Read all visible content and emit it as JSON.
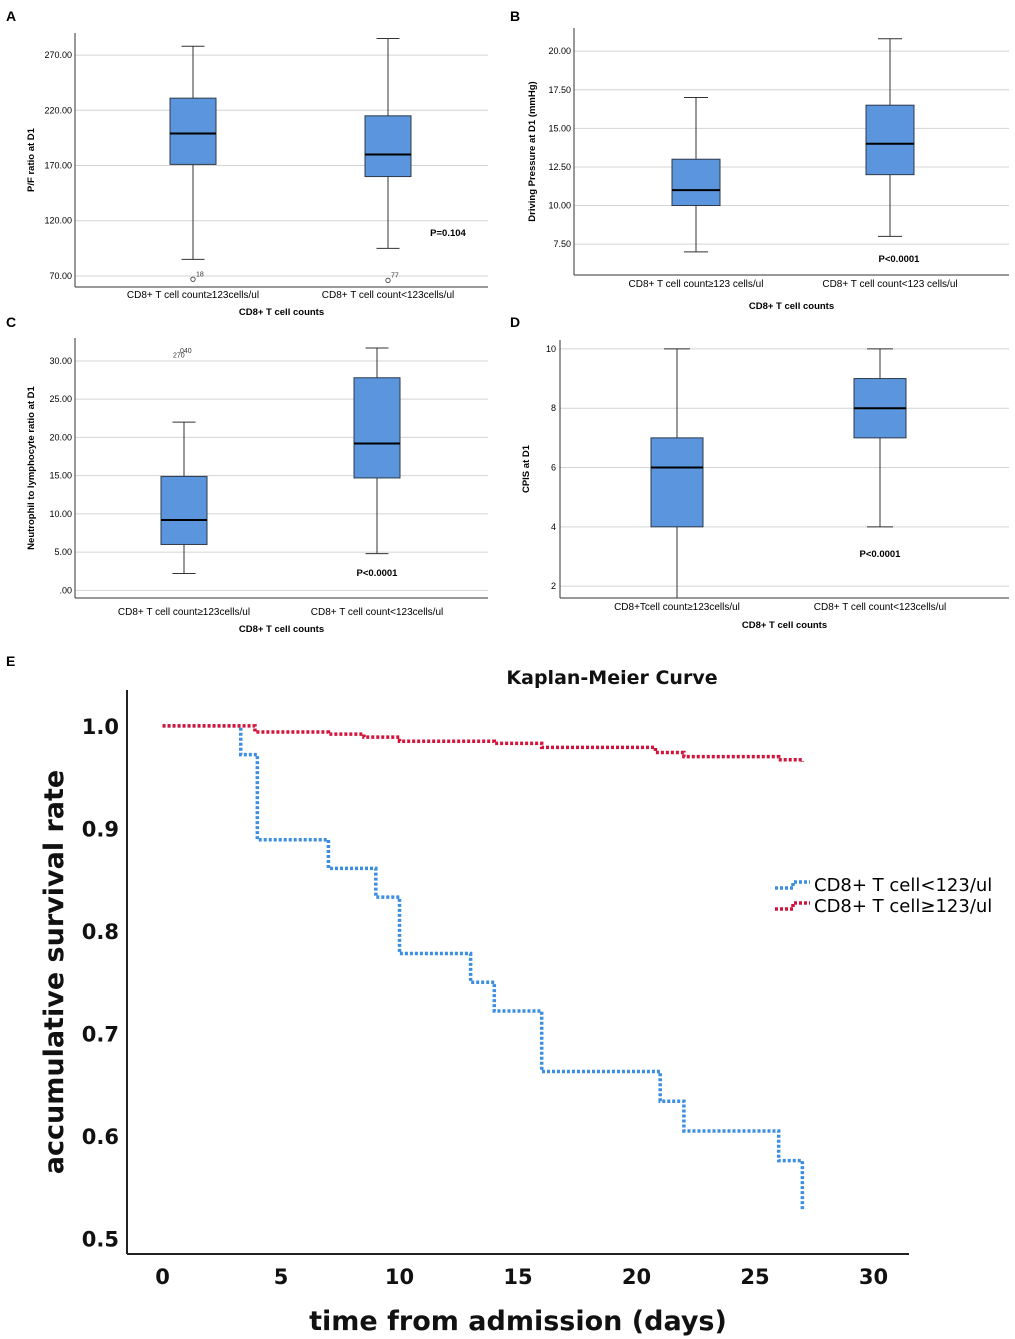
{
  "panel_labels": [
    "A",
    "B",
    "C",
    "D",
    "E"
  ],
  "chart_data": [
    {
      "panel": "A",
      "type": "box",
      "title": "",
      "xlabel": "CD8+ T cell counts",
      "ylabel": "P/F ratio at D1",
      "ylim": [
        60,
        290
      ],
      "yticks": [
        70,
        120,
        170,
        220,
        270
      ],
      "ytick_labels": [
        "70.00",
        "120.00",
        "170.00",
        "220.00",
        "270.00"
      ],
      "categories": [
        "CD8+ T cell count≥123cells/ul",
        "CD8+ T cell count<123cells/ul"
      ],
      "boxes": [
        {
          "whisker_low": 85,
          "q1": 171,
          "median": 199,
          "q3": 231,
          "whisker_high": 278,
          "outliers": [
            {
              "value": 67,
              "label": "18"
            }
          ]
        },
        {
          "whisker_low": 95,
          "q1": 160,
          "median": 180,
          "q3": 215,
          "whisker_high": 285,
          "outliers": [
            {
              "value": 66,
              "label": "77"
            }
          ]
        }
      ],
      "annotation": "P=0.104"
    },
    {
      "panel": "B",
      "type": "box",
      "title": "",
      "xlabel": "CD8+ T cell counts",
      "ylabel": "Driving Pressure at D1 (mmHg)",
      "ylim": [
        5.5,
        21.5
      ],
      "yticks": [
        7.5,
        10,
        12.5,
        15,
        17.5,
        20
      ],
      "ytick_labels": [
        "7.50",
        "10.00",
        "12.50",
        "15.00",
        "17.50",
        "20.00"
      ],
      "categories": [
        "CD8+ T cell count≥123 cells/ul",
        "CD8+ T cell count<123 cells/ul"
      ],
      "boxes": [
        {
          "whisker_low": 7,
          "q1": 10,
          "median": 11,
          "q3": 13,
          "whisker_high": 17,
          "outliers": []
        },
        {
          "whisker_low": 8,
          "q1": 12,
          "median": 14,
          "q3": 16.5,
          "whisker_high": 20.8,
          "outliers": []
        }
      ],
      "annotation": "P<0.0001"
    },
    {
      "panel": "C",
      "type": "box",
      "title": "",
      "xlabel": "CD8+ T cell counts",
      "ylabel": "Neutrophil to lymphocyte ratio at D1",
      "ylim": [
        -1,
        33
      ],
      "yticks": [
        0,
        5,
        10,
        15,
        20,
        25,
        30
      ],
      "ytick_labels": [
        ".00",
        "5.00",
        "10.00",
        "15.00",
        "20.00",
        "25.00",
        "30.00"
      ],
      "categories": [
        "CD8+ T cell count≥123cells/ul",
        "CD8+ T cell count<123cells/ul"
      ],
      "boxes": [
        {
          "whisker_low": 2.2,
          "q1": 6,
          "median": 9.2,
          "q3": 14.9,
          "whisker_high": 22,
          "outliers": [
            {
              "value": 31,
              "label": "270"
            },
            {
              "value": 31.3,
              "label": "040"
            }
          ]
        },
        {
          "whisker_low": 4.8,
          "q1": 14.7,
          "median": 19.2,
          "q3": 27.8,
          "whisker_high": 31.7,
          "outliers": []
        }
      ],
      "annotation": "P<0.0001"
    },
    {
      "panel": "D",
      "type": "box",
      "title": "",
      "xlabel": "CD8+ T cell counts",
      "ylabel": "CPIS at D1",
      "ylim": [
        1.6,
        10.3
      ],
      "yticks": [
        2,
        4,
        6,
        8,
        10
      ],
      "ytick_labels": [
        "2",
        "4",
        "6",
        "8",
        "10"
      ],
      "categories": [
        "CD8+Tcell count≥123cells/ul",
        "CD8+ T cell count<123cells/ul"
      ],
      "boxes": [
        {
          "whisker_low": 1.6,
          "q1": 4,
          "median": 6,
          "q3": 7,
          "whisker_high": 10,
          "outliers": []
        },
        {
          "whisker_low": 4,
          "q1": 7,
          "median": 8,
          "q3": 9,
          "whisker_high": 10,
          "outliers": []
        }
      ],
      "annotation": "P<0.0001"
    },
    {
      "panel": "E",
      "type": "line",
      "title": "Kaplan-Meier Curve",
      "xlabel": "time from admission (days)",
      "ylabel": "accumulative survival rate",
      "xlim": [
        -1.5,
        31.5
      ],
      "ylim": [
        0.485,
        1.035
      ],
      "xticks": [
        0,
        5,
        10,
        15,
        20,
        25,
        30
      ],
      "xtick_labels": [
        "0",
        "5",
        "10",
        "15",
        "20",
        "25",
        "30"
      ],
      "yticks": [
        0.5,
        0.6,
        0.7,
        0.8,
        0.9,
        1.0
      ],
      "ytick_labels": [
        "0.5",
        "0.6",
        "0.7",
        "0.8",
        "0.9",
        "1.0"
      ],
      "legend_position": "right",
      "series": [
        {
          "name": "CD8+ T cell<123/ul",
          "color": "#3c8ee0",
          "step": true,
          "x": [
            0,
            3,
            3.3,
            4,
            7,
            9,
            10,
            13,
            14,
            16,
            21,
            22,
            26,
            27,
            27
          ],
          "y": [
            1.0,
            1.0,
            0.972,
            0.889,
            0.861,
            0.833,
            0.778,
            0.75,
            0.722,
            0.663,
            0.634,
            0.605,
            0.576,
            0.576,
            0.527
          ]
        },
        {
          "name": "CD8+ T cell≥123/ul",
          "color": "#d2143c",
          "step": true,
          "x": [
            0,
            3,
            3.9,
            7,
            8.5,
            10,
            14,
            16,
            20.8,
            22,
            26,
            27
          ],
          "y": [
            1.0,
            1.0,
            0.994,
            0.992,
            0.989,
            0.985,
            0.983,
            0.979,
            0.974,
            0.97,
            0.967,
            0.965
          ]
        }
      ]
    }
  ]
}
